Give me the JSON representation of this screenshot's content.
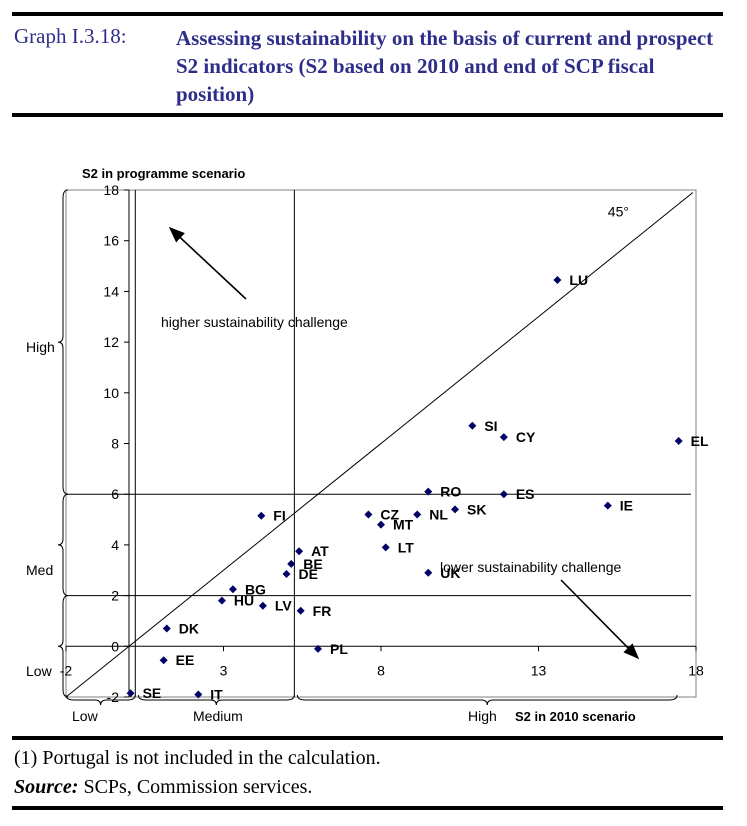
{
  "header": {
    "graph_number": "Graph I.3.18:",
    "title": "Assessing sustainability on the basis of current and prospect S2 indicators (S2 based on 2010 and end of SCP fiscal position)"
  },
  "footnote": {
    "note": "(1) Portugal is not included in the calculation.",
    "source_label": "Source:",
    "source_text": " SCPs, Commission services."
  },
  "colors": {
    "marker": "#000066",
    "title": "#2e2e8a"
  },
  "chart_data": {
    "type": "scatter",
    "title": "",
    "xlabel": "S2 in 2010 scenario",
    "ylabel": "S2 in programme scenario",
    "xlim": [
      -2,
      18
    ],
    "ylim": [
      -2,
      18
    ],
    "x_ticks": [
      -2,
      3,
      8,
      13,
      18
    ],
    "y_ticks": [
      -2,
      0,
      2,
      4,
      6,
      8,
      10,
      12,
      14,
      16,
      18
    ],
    "grid": false,
    "reference_line": {
      "label": "45°",
      "slope": 1,
      "intercept": 0
    },
    "x_thresholds": [
      0.2,
      5.25
    ],
    "y_thresholds": [
      2,
      6
    ],
    "x_category_labels": [
      "Low",
      "Medium",
      "High"
    ],
    "y_category_labels": [
      "Low",
      "Med",
      "High"
    ],
    "annotations": [
      {
        "text": "higher sustainability challenge",
        "arrow": "up-left"
      },
      {
        "text": "lower sustainability challenge",
        "arrow": "down-right"
      }
    ],
    "points": [
      {
        "label": "LU",
        "x": 13.6,
        "y": 14.45
      },
      {
        "label": "SI",
        "x": 10.9,
        "y": 8.7
      },
      {
        "label": "CY",
        "x": 11.9,
        "y": 8.25
      },
      {
        "label": "EL",
        "x": 17.45,
        "y": 8.1
      },
      {
        "label": "RO",
        "x": 9.5,
        "y": 6.1
      },
      {
        "label": "ES",
        "x": 11.9,
        "y": 6.0
      },
      {
        "label": "IE",
        "x": 15.2,
        "y": 5.55
      },
      {
        "label": "SK",
        "x": 10.35,
        "y": 5.4
      },
      {
        "label": "NL",
        "x": 9.15,
        "y": 5.2
      },
      {
        "label": "CZ",
        "x": 7.6,
        "y": 5.2
      },
      {
        "label": "FI",
        "x": 4.2,
        "y": 5.15
      },
      {
        "label": "MT",
        "x": 8.0,
        "y": 4.8
      },
      {
        "label": "LT",
        "x": 8.15,
        "y": 3.9
      },
      {
        "label": "AT",
        "x": 5.4,
        "y": 3.75
      },
      {
        "label": "BE",
        "x": 5.15,
        "y": 3.25
      },
      {
        "label": "UK",
        "x": 9.5,
        "y": 2.9
      },
      {
        "label": "DE",
        "x": 5.0,
        "y": 2.85
      },
      {
        "label": "BG",
        "x": 3.3,
        "y": 2.25
      },
      {
        "label": "HU",
        "x": 2.95,
        "y": 1.8
      },
      {
        "label": "LV",
        "x": 4.25,
        "y": 1.6
      },
      {
        "label": "FR",
        "x": 5.45,
        "y": 1.4
      },
      {
        "label": "DK",
        "x": 1.2,
        "y": 0.7
      },
      {
        "label": "PL",
        "x": 6.0,
        "y": -0.1
      },
      {
        "label": "EE",
        "x": 1.1,
        "y": -0.55
      },
      {
        "label": "SE",
        "x": 0.05,
        "y": -1.85
      },
      {
        "label": "IT",
        "x": 2.2,
        "y": -1.9
      }
    ]
  }
}
